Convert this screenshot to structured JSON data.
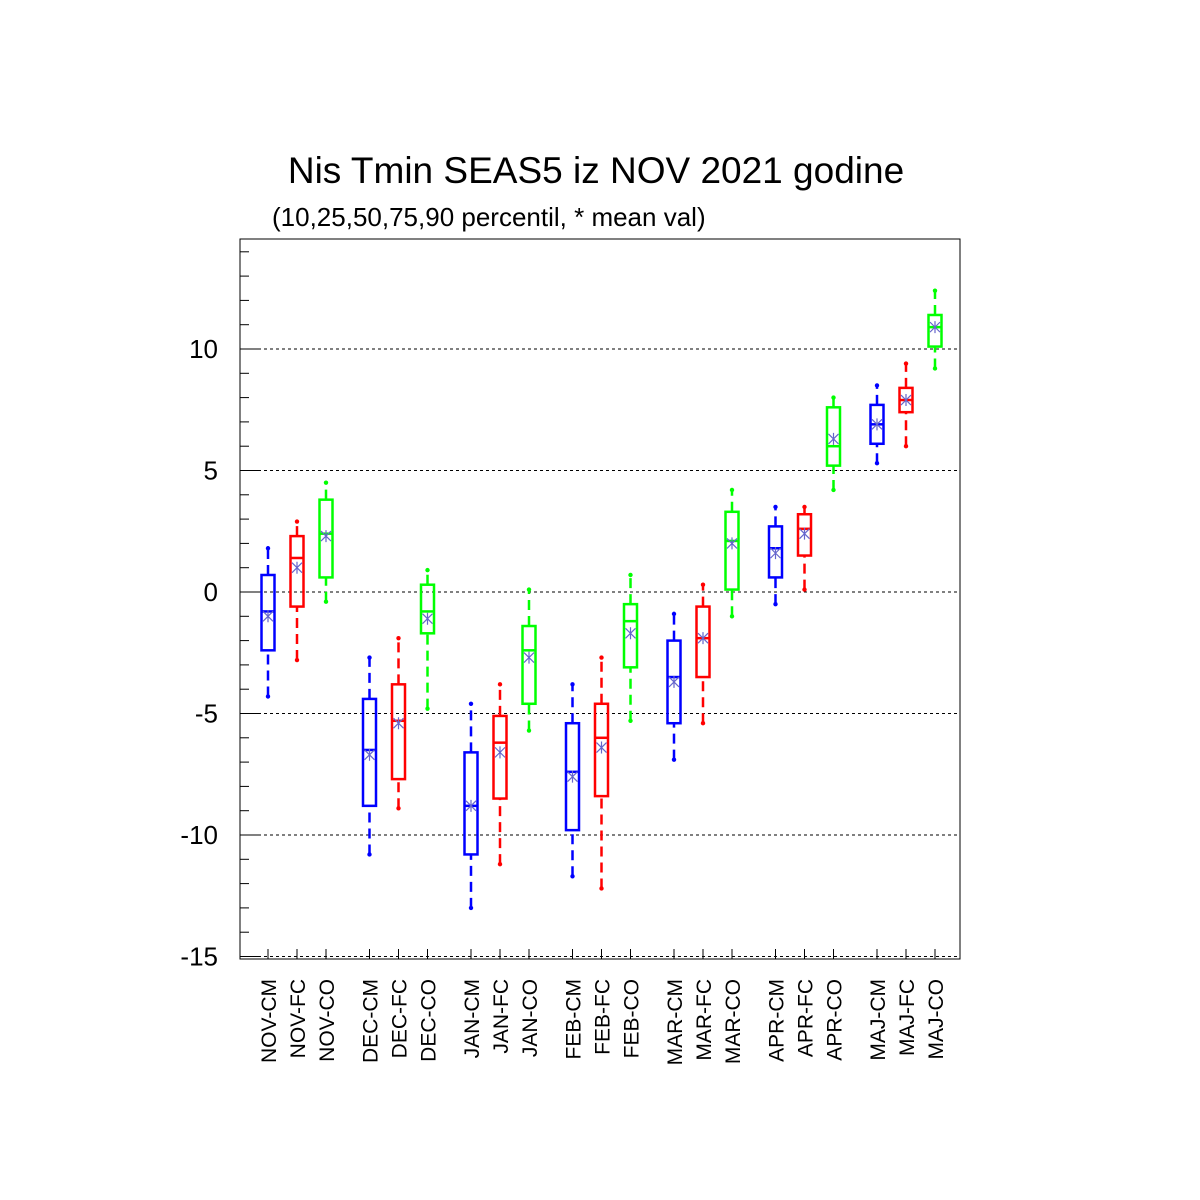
{
  "chart_data": {
    "type": "boxplot",
    "title": "Nis Tmin SEAS5 iz NOV 2021 godine",
    "subtitle": "(10,25,50,75,90 percentil, * mean val)",
    "xlabel": "",
    "ylabel": "",
    "ylim": [
      -15,
      14.5
    ],
    "yticks": [
      -15,
      -10,
      -5,
      0,
      5,
      10
    ],
    "ytick_labels": [
      "-15",
      "-10",
      "-5",
      "0",
      "5",
      "10"
    ],
    "grid": "horizontal dashed at major ticks",
    "colors": {
      "CM": "#0000ff",
      "FC": "#ff0000",
      "CO": "#00ff00",
      "mean_marker": "#6666cc"
    },
    "categories": [
      "NOV-CM",
      "NOV-FC",
      "NOV-CO",
      "DEC-CM",
      "DEC-FC",
      "DEC-CO",
      "JAN-CM",
      "JAN-FC",
      "JAN-CO",
      "FEB-CM",
      "FEB-FC",
      "FEB-CO",
      "MAR-CM",
      "MAR-FC",
      "MAR-CO",
      "APR-CM",
      "APR-FC",
      "APR-CO",
      "MAJ-CM",
      "MAJ-FC",
      "MAJ-CO"
    ],
    "boxes": [
      {
        "p10": -4.3,
        "p25": -2.4,
        "p50": -0.8,
        "p75": 0.7,
        "p90": 1.8,
        "mean": -1.0
      },
      {
        "p10": -2.8,
        "p25": -0.6,
        "p50": 1.4,
        "p75": 2.3,
        "p90": 2.9,
        "mean": 1.0
      },
      {
        "p10": -0.4,
        "p25": 0.6,
        "p50": 2.4,
        "p75": 3.8,
        "p90": 4.5,
        "mean": 2.3
      },
      {
        "p10": -10.8,
        "p25": -8.8,
        "p50": -6.5,
        "p75": -4.4,
        "p90": -2.7,
        "mean": -6.7
      },
      {
        "p10": -8.9,
        "p25": -7.7,
        "p50": -5.3,
        "p75": -3.8,
        "p90": -1.9,
        "mean": -5.4
      },
      {
        "p10": -4.8,
        "p25": -1.7,
        "p50": -0.8,
        "p75": 0.3,
        "p90": 0.9,
        "mean": -1.1
      },
      {
        "p10": -13.0,
        "p25": -10.8,
        "p50": -8.8,
        "p75": -6.6,
        "p90": -4.6,
        "mean": -8.8
      },
      {
        "p10": -11.2,
        "p25": -8.5,
        "p50": -6.2,
        "p75": -5.1,
        "p90": -3.8,
        "mean": -6.6
      },
      {
        "p10": -5.7,
        "p25": -4.6,
        "p50": -2.4,
        "p75": -1.4,
        "p90": 0.1,
        "mean": -2.7
      },
      {
        "p10": -11.7,
        "p25": -9.8,
        "p50": -7.4,
        "p75": -5.4,
        "p90": -3.8,
        "mean": -7.6
      },
      {
        "p10": -12.2,
        "p25": -8.4,
        "p50": -6.0,
        "p75": -4.6,
        "p90": -2.7,
        "mean": -6.4
      },
      {
        "p10": -5.3,
        "p25": -3.1,
        "p50": -1.2,
        "p75": -0.5,
        "p90": 0.7,
        "mean": -1.7
      },
      {
        "p10": -6.9,
        "p25": -5.4,
        "p50": -3.5,
        "p75": -2.0,
        "p90": -0.9,
        "mean": -3.7
      },
      {
        "p10": -5.4,
        "p25": -3.5,
        "p50": -1.9,
        "p75": -0.6,
        "p90": 0.3,
        "mean": -1.9
      },
      {
        "p10": -1.0,
        "p25": 0.1,
        "p50": 2.1,
        "p75": 3.3,
        "p90": 4.2,
        "mean": 2.0
      },
      {
        "p10": -0.5,
        "p25": 0.6,
        "p50": 1.8,
        "p75": 2.7,
        "p90": 3.5,
        "mean": 1.6
      },
      {
        "p10": 0.1,
        "p25": 1.5,
        "p50": 2.6,
        "p75": 3.2,
        "p90": 3.5,
        "mean": 2.4
      },
      {
        "p10": 4.2,
        "p25": 5.2,
        "p50": 6.0,
        "p75": 7.6,
        "p90": 8.0,
        "mean": 6.3
      },
      {
        "p10": 5.3,
        "p25": 6.1,
        "p50": 6.9,
        "p75": 7.7,
        "p90": 8.5,
        "mean": 6.9
      },
      {
        "p10": 6.0,
        "p25": 7.4,
        "p50": 7.9,
        "p75": 8.4,
        "p90": 9.4,
        "mean": 7.9
      },
      {
        "p10": 9.2,
        "p25": 10.1,
        "p50": 10.9,
        "p75": 11.4,
        "p90": 12.4,
        "mean": 10.9
      }
    ]
  }
}
